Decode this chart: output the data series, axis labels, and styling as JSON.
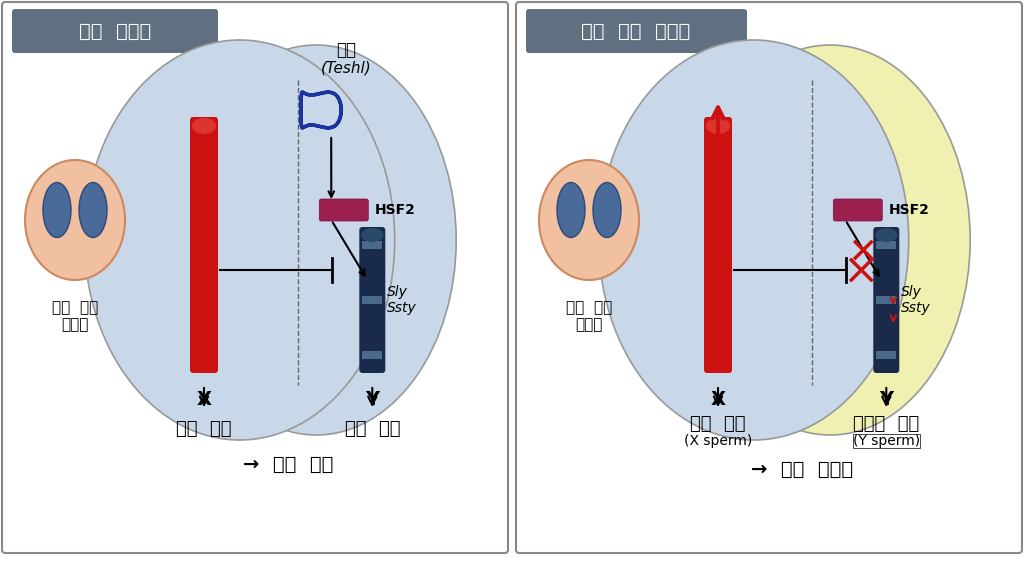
{
  "left_title": "정상  마우스",
  "right_title": "테실  결핍  마우스",
  "left_cell_label": "발생  중인\n정세포",
  "right_cell_label": "발생  중인\n정세포",
  "teshl_label": "테슬\n(Teshl)",
  "hsf2_label": "HSF2",
  "sly_ssty_label": "Sly\nSsty",
  "x_label": "X",
  "y_label": "Y",
  "left_bottom1": "정상  정자",
  "left_bottom2": "정상  정자",
  "left_bottom3": "→  성비  균형",
  "right_bottom1": "정상  정자",
  "right_bottom1b": "(X sperm)",
  "right_bottom2": "비정상  정자",
  "right_bottom2b": "(Y sperm)",
  "right_bottom3": "→  성비  불균형",
  "bg_color": "#ffffff",
  "cell_fill_blue": "#c8d8e8",
  "cell_fill_yellow": "#f0f0b0",
  "title_box_color": "#607080",
  "title_text_color": "#ffffff",
  "chromosome_red": "#cc1111",
  "chromosome_dark": "#1a2a4a",
  "hsf2_color": "#9b2050",
  "arrow_color": "#333333",
  "down_arrow_red": "#cc1111",
  "inhibit_color": "#333333",
  "teshl_color": "#1a35a0",
  "x_mark_color": "#cc1111",
  "skin_fill": "#f0c0a0",
  "skin_stroke": "#cc8860"
}
